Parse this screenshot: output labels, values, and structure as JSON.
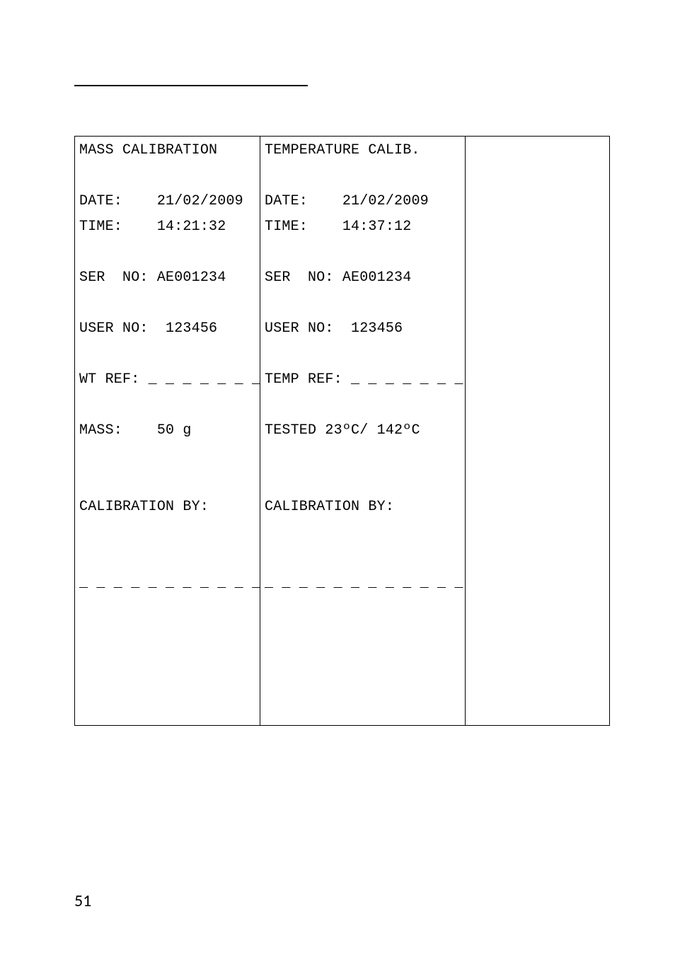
{
  "page_number": "51",
  "mass": {
    "title": "MASS CALIBRATION",
    "date_label": "DATE:",
    "date": "21/02/2009",
    "time_label": "TIME:",
    "time": "14:21:32",
    "ser_label": "SER  NO:",
    "ser": "AE001234",
    "user_label": "USER NO:",
    "user": "123456",
    "ref_label": "WT REF:",
    "ref_blank": "_ _ _ _ _ _ _",
    "mass_label": "MASS:",
    "mass_value": "50 g",
    "by_label": "CALIBRATION BY:",
    "sig_line": "_ _ _ _ _ _ _ _ _ _ _"
  },
  "temp": {
    "title": "TEMPERATURE CALIB.",
    "date_label": "DATE:",
    "date": "21/02/2009",
    "time_label": "TIME:",
    "time": "14:37:12",
    "ser_label": "SER  NO:",
    "ser": "AE001234",
    "user_label": "USER NO:",
    "user": "123456",
    "ref_label": "TEMP REF:",
    "ref_blank": "_ _ _ _ _ _ _",
    "tested_label": "TESTED",
    "tested_value": "23ºC/ 142ºC",
    "by_label": "CALIBRATION BY:",
    "sig_line": "_ _ _ _ _ _ _ _ _ _ _ _"
  }
}
